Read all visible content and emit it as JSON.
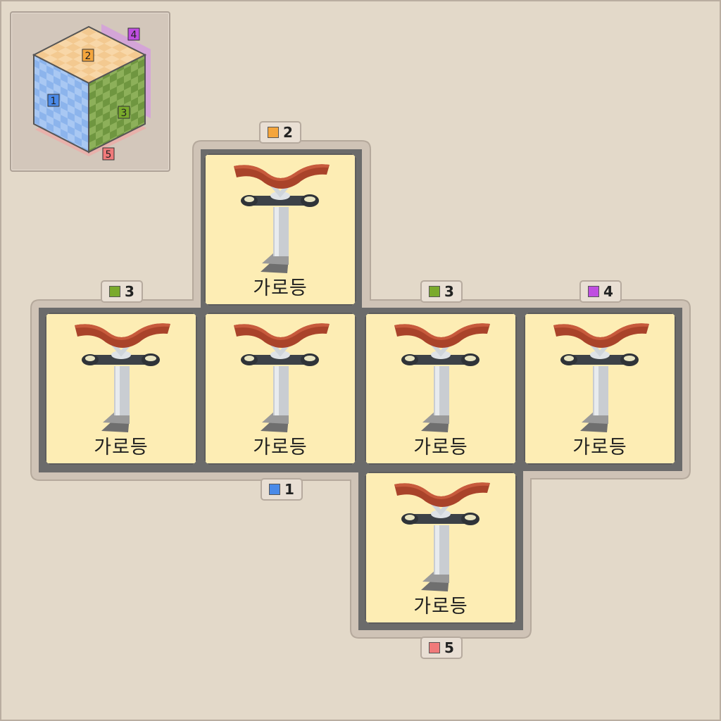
{
  "colors": {
    "face1": "#4a8ae8",
    "face2": "#f4a53c",
    "face3": "#7aaa2c",
    "face4": "#bf4ee0",
    "face5": "#f07a7a"
  },
  "cube_legend": {
    "face_numbers": [
      "1",
      "2",
      "3",
      "4",
      "5"
    ]
  },
  "net": {
    "item_icon": "street-lamp-icon",
    "cells": [
      {
        "id": "top",
        "label": "가로등"
      },
      {
        "id": "left",
        "label": "가로등"
      },
      {
        "id": "center",
        "label": "가로등"
      },
      {
        "id": "right",
        "label": "가로등"
      },
      {
        "id": "far-right",
        "label": "가로등"
      },
      {
        "id": "bottom",
        "label": "가로등"
      }
    ],
    "tags": [
      {
        "id": "top",
        "number": "2",
        "color": "#f4a53c"
      },
      {
        "id": "left-top",
        "number": "3",
        "color": "#7aaa2c"
      },
      {
        "id": "right-top",
        "number": "3",
        "color": "#7aaa2c"
      },
      {
        "id": "far-right-top",
        "number": "4",
        "color": "#bf4ee0"
      },
      {
        "id": "center-bottom",
        "number": "1",
        "color": "#4a8ae8"
      },
      {
        "id": "bottom",
        "number": "5",
        "color": "#f07a7a"
      }
    ]
  }
}
